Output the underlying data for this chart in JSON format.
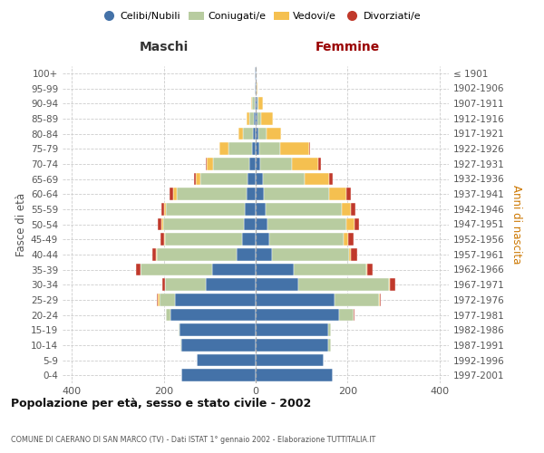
{
  "age_groups": [
    "0-4",
    "5-9",
    "10-14",
    "15-19",
    "20-24",
    "25-29",
    "30-34",
    "35-39",
    "40-44",
    "45-49",
    "50-54",
    "55-59",
    "60-64",
    "65-69",
    "70-74",
    "75-79",
    "80-84",
    "85-89",
    "90-94",
    "95-99",
    "100+"
  ],
  "birth_years": [
    "1997-2001",
    "1992-1996",
    "1987-1991",
    "1982-1986",
    "1977-1981",
    "1972-1976",
    "1967-1971",
    "1962-1966",
    "1957-1961",
    "1952-1956",
    "1947-1951",
    "1942-1946",
    "1937-1941",
    "1932-1936",
    "1927-1931",
    "1922-1926",
    "1917-1921",
    "1912-1916",
    "1907-1911",
    "1902-1906",
    "≤ 1901"
  ],
  "maschi": {
    "celibi": [
      162,
      128,
      162,
      165,
      185,
      175,
      108,
      95,
      42,
      30,
      26,
      23,
      20,
      18,
      14,
      8,
      5,
      4,
      2,
      1,
      1
    ],
    "coniugati": [
      0,
      0,
      2,
      2,
      10,
      35,
      90,
      155,
      172,
      167,
      175,
      172,
      152,
      102,
      78,
      52,
      22,
      10,
      5,
      0,
      0
    ],
    "vedovi": [
      0,
      0,
      0,
      0,
      0,
      2,
      0,
      1,
      2,
      3,
      4,
      5,
      8,
      10,
      14,
      18,
      10,
      5,
      2,
      0,
      0
    ],
    "divorziati": [
      0,
      0,
      0,
      0,
      1,
      2,
      5,
      9,
      9,
      7,
      8,
      6,
      8,
      5,
      2,
      1,
      1,
      1,
      0,
      0,
      0
    ]
  },
  "femmine": {
    "nubili": [
      168,
      147,
      158,
      158,
      182,
      172,
      92,
      82,
      36,
      30,
      26,
      22,
      18,
      15,
      10,
      8,
      5,
      4,
      3,
      1,
      1
    ],
    "coniugate": [
      0,
      0,
      5,
      5,
      30,
      96,
      198,
      158,
      167,
      162,
      172,
      166,
      142,
      92,
      68,
      46,
      18,
      8,
      3,
      1,
      0
    ],
    "vedove": [
      0,
      0,
      0,
      0,
      1,
      2,
      2,
      2,
      5,
      9,
      16,
      20,
      38,
      52,
      58,
      62,
      32,
      25,
      10,
      1,
      0
    ],
    "divorziate": [
      0,
      0,
      0,
      0,
      1,
      2,
      11,
      13,
      13,
      11,
      10,
      8,
      10,
      8,
      5,
      2,
      1,
      1,
      0,
      0,
      0
    ]
  },
  "colors": {
    "celibi_nubili": "#4472a8",
    "coniugati": "#b8cca0",
    "vedovi": "#f5c050",
    "divorziati": "#c0392b"
  },
  "xlim": 420,
  "xticks": [
    -400,
    -200,
    0,
    200,
    400
  ],
  "title": "Popolazione per età, sesso e stato civile - 2002",
  "subtitle": "COMUNE DI CAERANO DI SAN MARCO (TV) - Dati ISTAT 1° gennaio 2002 - Elaborazione TUTTITALIA.IT",
  "ylabel_left": "Fasce di età",
  "ylabel_right": "Anni di nascita",
  "xlabel_maschi": "Maschi",
  "xlabel_femmine": "Femmine"
}
